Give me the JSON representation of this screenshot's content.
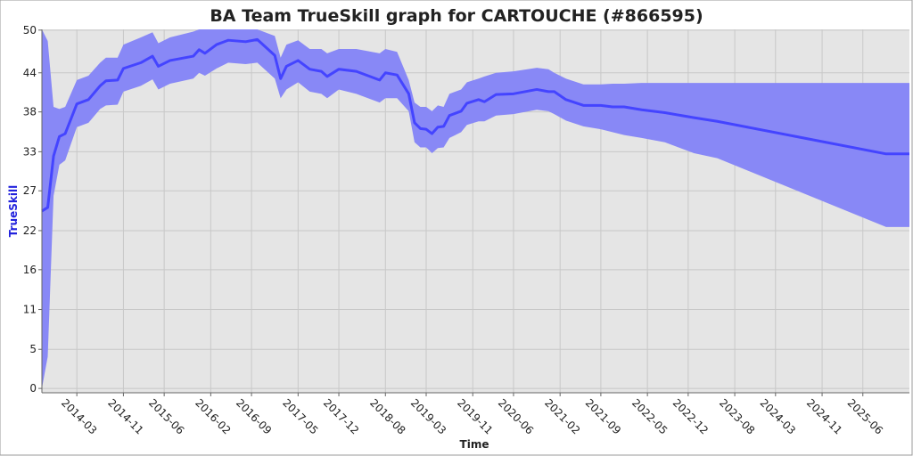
{
  "chart_data": {
    "type": "line",
    "title": "BA Team TrueSkill graph for CARTOUCHE (#866595)",
    "x_label": "Time",
    "y_label": "TrueSkill",
    "x": [
      "2013-09",
      "2013-10",
      "2013-11",
      "2013-12",
      "2014-01",
      "2014-03",
      "2014-05",
      "2014-07",
      "2014-08",
      "2014-10",
      "2014-11",
      "2015-02",
      "2015-04",
      "2015-05",
      "2015-07",
      "2015-11",
      "2015-12",
      "2016-01",
      "2016-03",
      "2016-05",
      "2016-08",
      "2016-10",
      "2017-01",
      "2017-02",
      "2017-03",
      "2017-05",
      "2017-07",
      "2017-09",
      "2017-10",
      "2017-12",
      "2018-03",
      "2018-07",
      "2018-08",
      "2018-10",
      "2018-12",
      "2019-01",
      "2019-02",
      "2019-03",
      "2019-04",
      "2019-05",
      "2019-06",
      "2019-07",
      "2019-09",
      "2019-10",
      "2019-12",
      "2020-01",
      "2020-03",
      "2020-06",
      "2020-10",
      "2020-12",
      "2021-01",
      "2021-03",
      "2021-06",
      "2021-09",
      "2021-11",
      "2022-01",
      "2022-04",
      "2022-08",
      "2023-01",
      "2023-05",
      "2025-10",
      "2026-02"
    ],
    "values": [
      24.5,
      25,
      32.1,
      34.8,
      35.2,
      39.3,
      39.9,
      41.8,
      42.5,
      42.6,
      44.2,
      45,
      45.9,
      44.5,
      45.3,
      45.9,
      46.8,
      46.3,
      47.5,
      48.1,
      47.9,
      48.2,
      46,
      42.8,
      44.5,
      45.3,
      44.1,
      43.8,
      43.1,
      44.1,
      43.8,
      42.6,
      43.6,
      43.3,
      40.7,
      36.7,
      35.9,
      35.8,
      35.2,
      36.1,
      36.2,
      37.7,
      38.3,
      39.4,
      39.9,
      39.6,
      40.6,
      40.7,
      41.3,
      41,
      41,
      39.9,
      39.1,
      39.1,
      38.9,
      38.9,
      38.5,
      38.1,
      37.4,
      36.9,
      32.4,
      32.4
    ],
    "band_low": [
      0,
      4.4,
      26.6,
      30.9,
      31.5,
      36.1,
      36.7,
      38.6,
      39.1,
      39.2,
      41,
      41.8,
      42.7,
      41.3,
      42.1,
      42.8,
      43.6,
      43.2,
      44.2,
      45,
      44.8,
      45,
      42.8,
      40.1,
      41.3,
      42.3,
      41,
      40.7,
      40.1,
      41.3,
      40.7,
      39.5,
      40.1,
      40.1,
      38.3,
      34,
      33.3,
      33.3,
      32.5,
      33.2,
      33.3,
      34.6,
      35.4,
      36.4,
      36.9,
      36.9,
      37.7,
      37.9,
      38.5,
      38.3,
      37.9,
      37,
      36.2,
      35.8,
      35.4,
      35,
      34.6,
      34,
      32.5,
      31.8,
      22.3,
      22.3
    ],
    "band_high": [
      49.6,
      48,
      38.9,
      38.6,
      38.9,
      42.6,
      43.2,
      45,
      45.7,
      45.7,
      47.5,
      48.5,
      49.2,
      47.7,
      48.5,
      49.3,
      49.6,
      49.6,
      49.6,
      49.6,
      49.6,
      49.6,
      48.7,
      45.7,
      47.5,
      48.1,
      46.9,
      46.9,
      46.3,
      46.9,
      46.9,
      46.3,
      46.9,
      46.5,
      42.6,
      39.5,
      38.9,
      38.9,
      38.3,
      39.1,
      38.9,
      40.7,
      41.3,
      42.3,
      42.8,
      43.1,
      43.6,
      43.8,
      44.3,
      44.1,
      43.6,
      42.8,
      42,
      42,
      42.1,
      42.1,
      42.2,
      42.2,
      42.2,
      42.2,
      42.2,
      42.2
    ],
    "color": "#4444ff",
    "band_color": "#8888f6",
    "xlim": [
      "2013-09",
      "2026-02"
    ],
    "xticks": [
      "2014-03",
      "2014-11",
      "2015-06",
      "2016-02",
      "2016-09",
      "2017-05",
      "2017-12",
      "2018-08",
      "2019-03",
      "2019-11",
      "2020-06",
      "2021-02",
      "2021-09",
      "2022-05",
      "2022-12",
      "2023-08",
      "2024-03",
      "2024-11",
      "2025-06"
    ],
    "ylim": [
      -0.6,
      49.6
    ],
    "yticks": [
      0,
      {
        "value": 5.4,
        "label": "5"
      },
      {
        "value": 10.9,
        "label": "11"
      },
      {
        "value": 16.4,
        "label": "16"
      },
      {
        "value": 21.8,
        "label": "22"
      },
      {
        "value": 27.3,
        "label": "27"
      },
      {
        "value": 32.7,
        "label": "33"
      },
      {
        "value": 38.2,
        "label": "38"
      },
      {
        "value": 43.6,
        "label": "44"
      },
      {
        "value": 49.5,
        "label": "50"
      }
    ],
    "grid": true
  }
}
